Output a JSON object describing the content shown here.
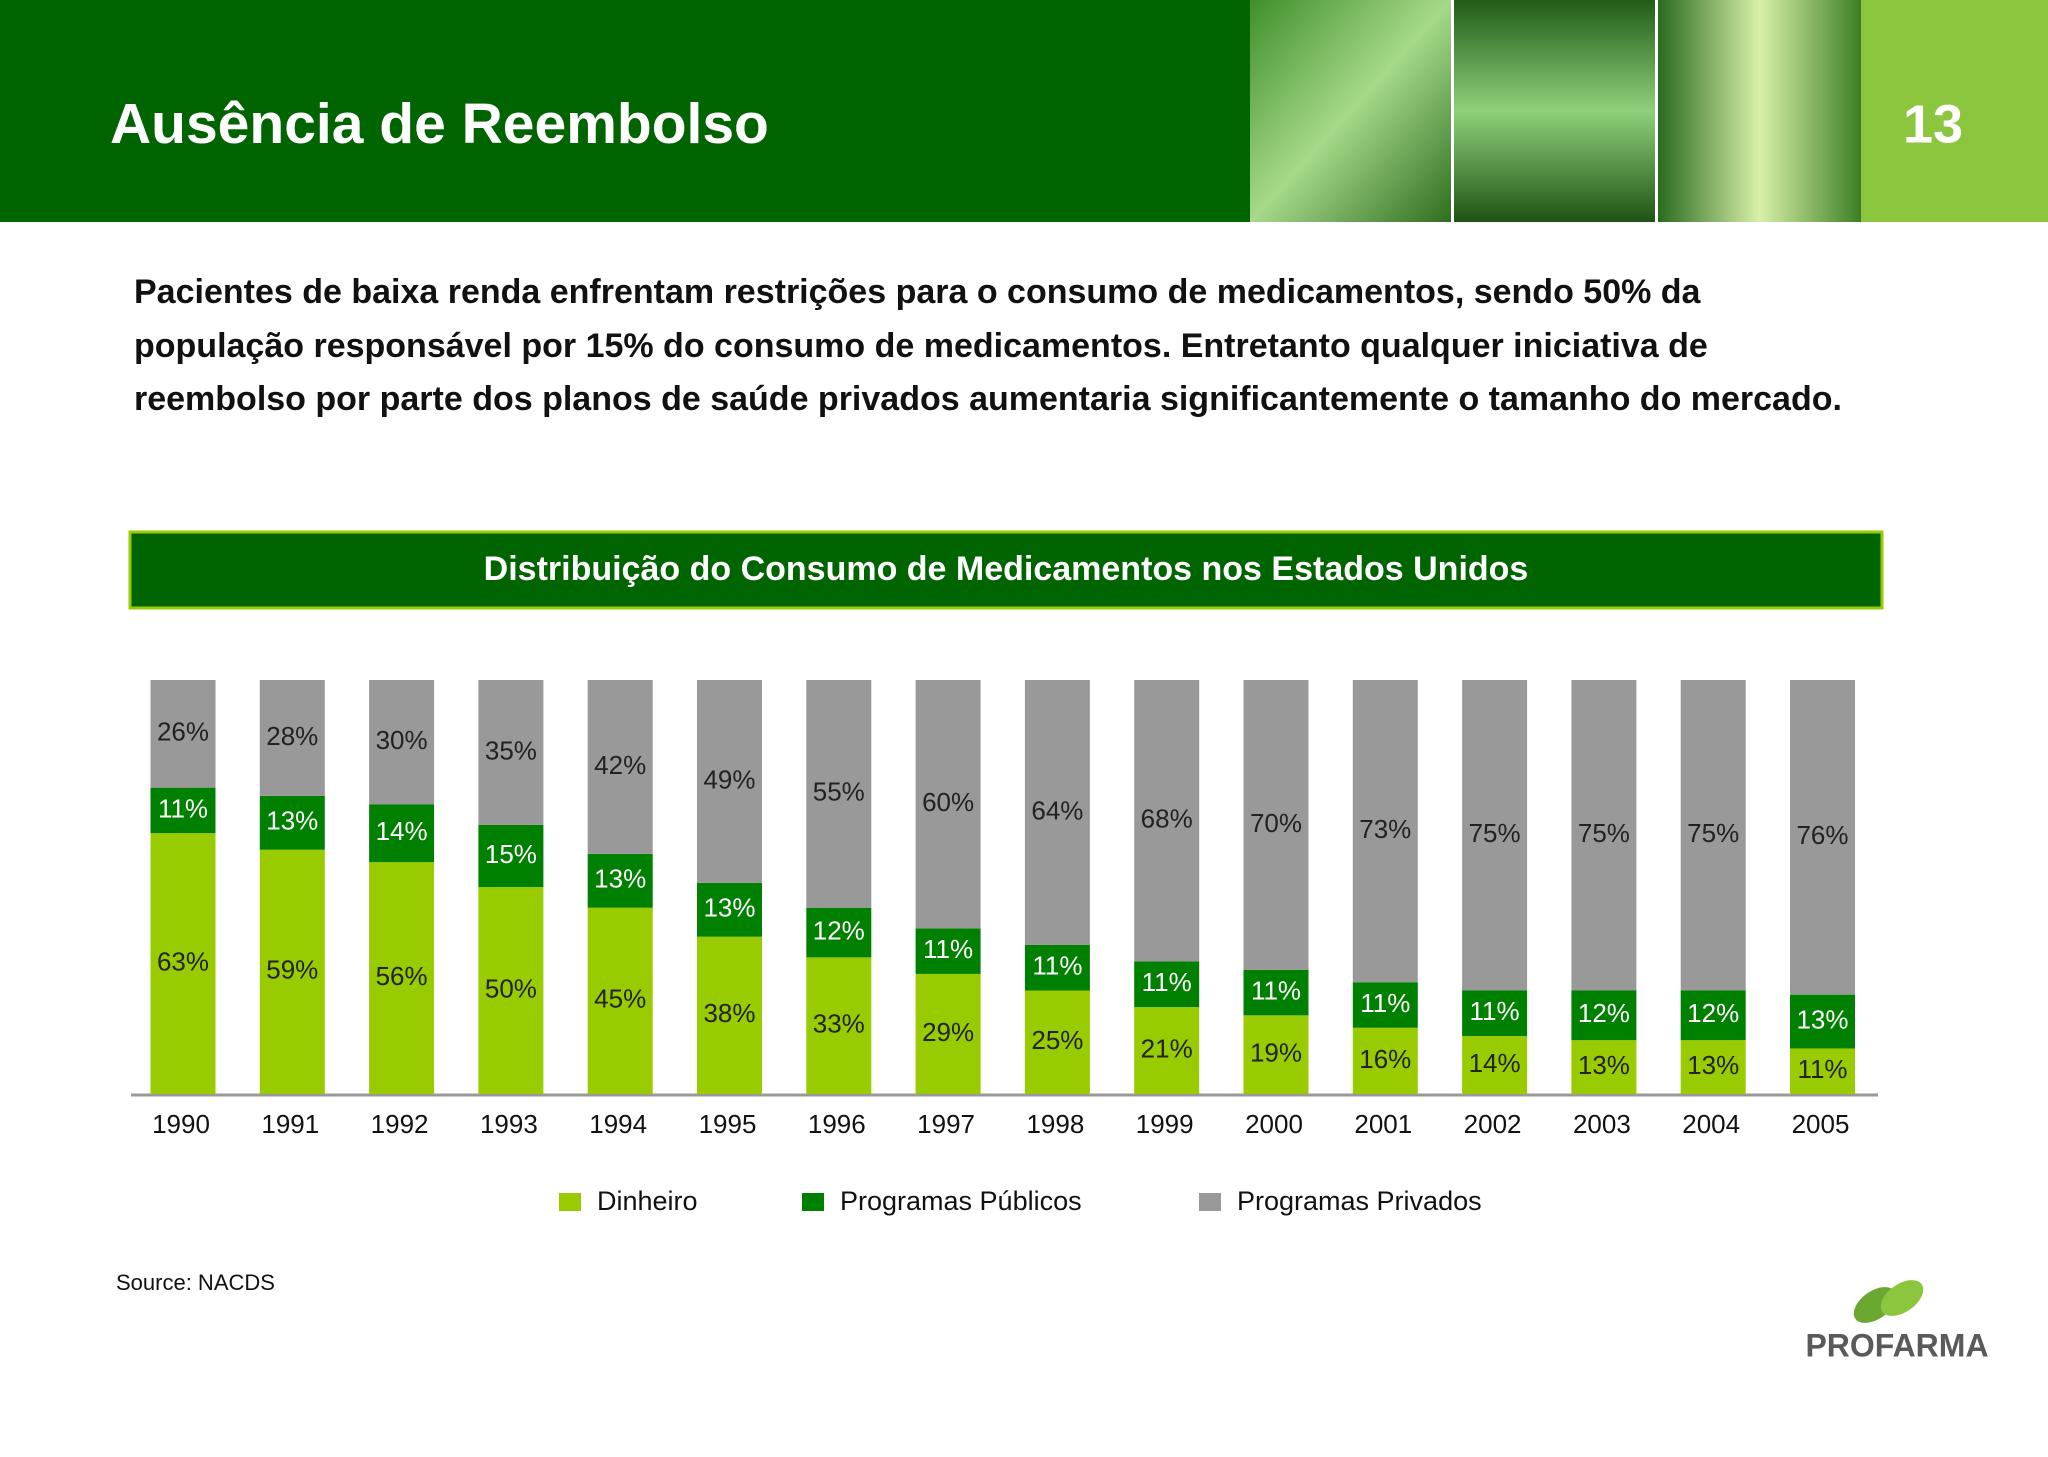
{
  "header": {
    "title": "Ausência de Reembolso",
    "page_number": "13"
  },
  "body": {
    "text": "Pacientes de baixa renda enfrentam restrições para o consumo de medicamentos, sendo 50% da população responsável por 15% do consumo de medicamentos. Entretanto qualquer iniciativa de reembolso por parte dos planos de saúde privados aumentaria significantemente o tamanho do mercado."
  },
  "chart_data": {
    "type": "stacked_bar",
    "title": "Distribuição do Consumo de Medicamentos nos Estados Unidos",
    "categories": [
      "1990",
      "1991",
      "1992",
      "1993",
      "1994",
      "1995",
      "1996",
      "1997",
      "1998",
      "1999",
      "2000",
      "2001",
      "2002",
      "2003",
      "2004",
      "2005"
    ],
    "ylim": [
      0,
      100
    ],
    "series": [
      {
        "name": "Dinheiro",
        "color": "#99cc00",
        "values": [
          63,
          59,
          56,
          50,
          45,
          38,
          33,
          29,
          25,
          21,
          19,
          16,
          14,
          13,
          13,
          11
        ],
        "value_labels": [
          "63%",
          "59%",
          "56%",
          "50%",
          "45%",
          "38%",
          "33%",
          "29%",
          "25%",
          "21%",
          "19%",
          "16%",
          "14%",
          "13%",
          "13%",
          "11%"
        ]
      },
      {
        "name": "Programas Públicos",
        "color": "#008000",
        "values": [
          11,
          13,
          14,
          15,
          13,
          13,
          12,
          11,
          11,
          11,
          11,
          11,
          11,
          12,
          12,
          13
        ],
        "value_labels": [
          "11%",
          "13%",
          "14%",
          "15%",
          "13%",
          "13%",
          "12%",
          "11%",
          "11%",
          "11%",
          "11%",
          "11%",
          "11%",
          "12%",
          "12%",
          "13%"
        ]
      },
      {
        "name": "Programas Privados",
        "color": "#999999",
        "values": [
          26,
          28,
          30,
          35,
          42,
          49,
          55,
          60,
          64,
          68,
          70,
          73,
          75,
          75,
          75,
          76
        ],
        "value_labels": [
          "26%",
          "28%",
          "30%",
          "35%",
          "42%",
          "49%",
          "55%",
          "60%",
          "64%",
          "68%",
          "70%",
          "73%",
          "75%",
          "75%",
          "75%",
          "76%"
        ]
      }
    ],
    "legend": "bottom"
  },
  "footer": {
    "source": "Source: NACDS",
    "logo": "PROFARMA"
  }
}
